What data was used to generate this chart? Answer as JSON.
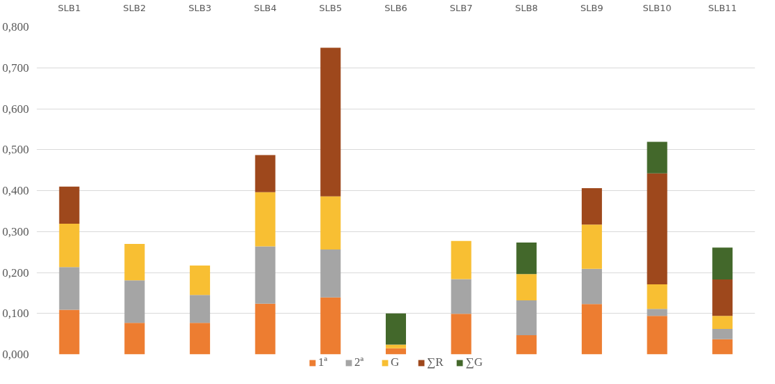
{
  "chart_data": {
    "type": "bar",
    "stacked": true,
    "categories": [
      "SLB1",
      "SLB2",
      "SLB3",
      "SLB4",
      "SLB5",
      "SLB6",
      "SLB7",
      "SLB8",
      "SLB9",
      "SLB10",
      "SLB11"
    ],
    "series": [
      {
        "name": "1ª",
        "color": "#ed7d31",
        "values": [
          0.109,
          0.077,
          0.077,
          0.124,
          0.139,
          0.015,
          0.099,
          0.047,
          0.123,
          0.094,
          0.037
        ]
      },
      {
        "name": "2ª",
        "color": "#a5a5a5",
        "values": [
          0.104,
          0.104,
          0.068,
          0.14,
          0.117,
          null,
          0.085,
          0.085,
          0.086,
          0.017,
          0.025
        ]
      },
      {
        "name": "G",
        "color": "#f8bf33",
        "values": [
          0.106,
          0.089,
          0.072,
          0.132,
          0.13,
          0.009,
          0.093,
          0.064,
          0.108,
          0.06,
          0.032
        ]
      },
      {
        "name": "∑R",
        "color": "#9e481c",
        "values": [
          0.091,
          null,
          null,
          0.091,
          0.363,
          null,
          null,
          null,
          0.089,
          0.271,
          0.089
        ]
      },
      {
        "name": "∑G",
        "color": "#43682b",
        "values": [
          null,
          null,
          null,
          null,
          null,
          0.076,
          null,
          0.077,
          null,
          0.077,
          0.078
        ]
      }
    ],
    "ylim": [
      0,
      0.8
    ],
    "yticks": [
      {
        "value": 0,
        "label": "0,000"
      },
      {
        "value": 0.1,
        "label": "0,100"
      },
      {
        "value": 0.2,
        "label": "0,200"
      },
      {
        "value": 0.3,
        "label": "0,300"
      },
      {
        "value": 0.4,
        "label": "0,400"
      },
      {
        "value": 0.5,
        "label": "0,500"
      },
      {
        "value": 0.6,
        "label": "0,600"
      },
      {
        "value": 0.7,
        "label": "0,700"
      },
      {
        "value": 0.8,
        "label": "0,800"
      }
    ],
    "grid": "y",
    "legend": "bottom"
  }
}
